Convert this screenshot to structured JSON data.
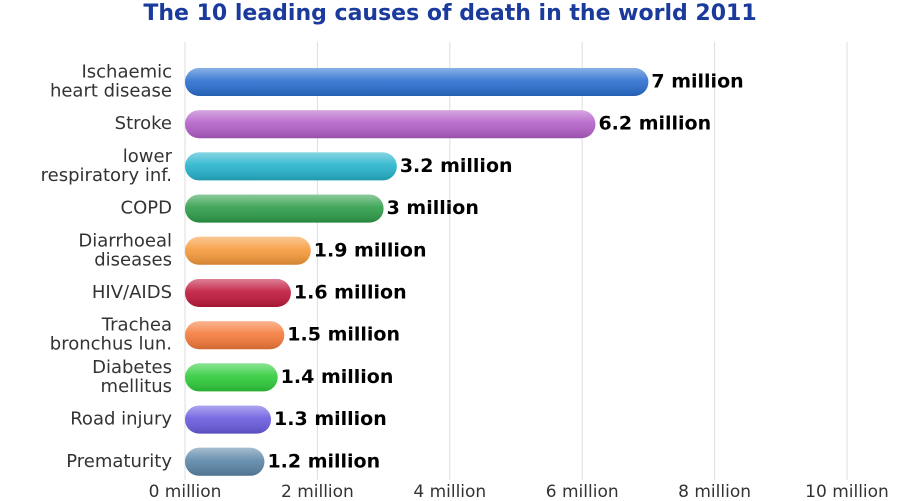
{
  "chart_data": {
    "type": "hbar",
    "title": "The 10 leading causes of death in the world 2011",
    "categories": [
      "Ischaemic\nheart disease",
      "Stroke",
      "lower\nrespiratory inf.",
      "COPD",
      "Diarrhoeal\ndiseases",
      "HIV/AIDS",
      "Trachea\nbronchus lun.",
      "Diabetes\nmellitus",
      "Road injury",
      "Prematurity"
    ],
    "values": [
      7,
      6.2,
      3.2,
      3,
      1.9,
      1.6,
      1.5,
      1.4,
      1.3,
      1.2
    ],
    "value_labels": [
      "7 million",
      "6.2 million",
      "3.2 million",
      "3 million",
      "1.9 million",
      "1.6 million",
      "1.5 million",
      "1.4 million",
      "1.3 million",
      "1.2 million"
    ],
    "colors": [
      "#2a6fd0",
      "#b35fc8",
      "#25b3cc",
      "#2e9e4a",
      "#f79a3a",
      "#c0183c",
      "#f57a3a",
      "#2ecc3a",
      "#6a5ce0",
      "#5b86a8"
    ],
    "xlim": [
      0,
      10
    ],
    "xticks": [
      {
        "value": 0,
        "label": "0 million"
      },
      {
        "value": 2,
        "label": "2 million"
      },
      {
        "value": 4,
        "label": "4 million"
      },
      {
        "value": 6,
        "label": "6 million"
      },
      {
        "value": 8,
        "label": "8 million"
      },
      {
        "value": 10,
        "label": "10 million"
      }
    ],
    "grid": true
  }
}
